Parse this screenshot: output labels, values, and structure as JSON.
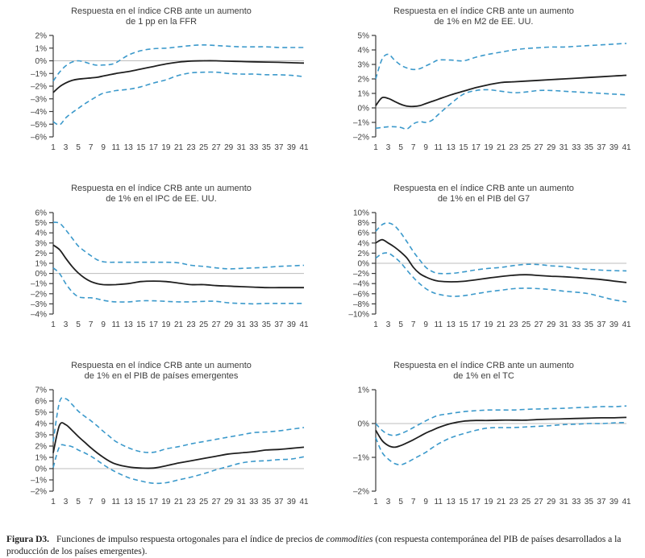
{
  "colors": {
    "band": "#3b99cb",
    "mean": "#1f1f1f",
    "zero_line": "#bcbcbc",
    "axis": "#3a3a3a",
    "text": "#3d3d3d"
  },
  "caption": {
    "label": "Figura D3.",
    "text_before_italic": "Funciones de impulso respuesta ortogonales para el índice de precios de ",
    "italic": "commodities",
    "text_after_italic": " (con respuesta contemporánea del PIB de países desarrollados a la producción de los países emergentes)."
  },
  "chart_data": [
    {
      "type": "line",
      "title_line1": "Respuesta en el índice CRB ante un aumento",
      "title_line2": "de 1 pp en la FFR",
      "ylim": [
        -6,
        2
      ],
      "ytick_step": 1,
      "xticks": [
        1,
        3,
        5,
        7,
        9,
        11,
        13,
        15,
        17,
        19,
        21,
        23,
        25,
        27,
        29,
        31,
        33,
        35,
        37,
        39,
        41
      ],
      "x": [
        1,
        2,
        3,
        4,
        5,
        6,
        7,
        8,
        9,
        10,
        11,
        13,
        15,
        17,
        19,
        21,
        23,
        25,
        27,
        29,
        31,
        33,
        35,
        37,
        39,
        41
      ],
      "series": [
        {
          "id": "mean",
          "style": "solid",
          "values": [
            -2.5,
            -2.05,
            -1.75,
            -1.55,
            -1.45,
            -1.4,
            -1.35,
            -1.3,
            -1.2,
            -1.1,
            -1.0,
            -0.85,
            -0.65,
            -0.45,
            -0.25,
            -0.1,
            -0.02,
            0,
            0,
            -0.03,
            -0.06,
            -0.08,
            -0.1,
            -0.12,
            -0.15,
            -0.18
          ]
        },
        {
          "id": "upper_band",
          "style": "dashed",
          "values": [
            -1.6,
            -0.9,
            -0.4,
            -0.1,
            0,
            -0.1,
            -0.25,
            -0.35,
            -0.33,
            -0.3,
            -0.15,
            0.45,
            0.8,
            0.95,
            1.0,
            1.1,
            1.2,
            1.25,
            1.2,
            1.15,
            1.1,
            1.1,
            1.1,
            1.05,
            1.05,
            1.05
          ]
        },
        {
          "id": "lower_band",
          "style": "dashed",
          "values": [
            -4.8,
            -5.05,
            -4.5,
            -4.1,
            -3.75,
            -3.4,
            -3.1,
            -2.8,
            -2.55,
            -2.45,
            -2.35,
            -2.25,
            -2.05,
            -1.75,
            -1.5,
            -1.15,
            -0.95,
            -0.9,
            -0.9,
            -1.0,
            -1.05,
            -1.05,
            -1.1,
            -1.1,
            -1.15,
            -1.25
          ]
        }
      ]
    },
    {
      "type": "line",
      "title_line1": "Respuesta en el índice CRB ante un aumento",
      "title_line2": "de 1% en M2 de EE. UU.",
      "ylim": [
        -2,
        5
      ],
      "ytick_step": 1,
      "xticks": [
        1,
        3,
        5,
        7,
        9,
        11,
        13,
        15,
        17,
        19,
        21,
        23,
        25,
        27,
        29,
        31,
        33,
        35,
        37,
        39,
        41
      ],
      "x": [
        1,
        2,
        3,
        4,
        5,
        6,
        7,
        8,
        9,
        10,
        11,
        13,
        15,
        17,
        19,
        21,
        23,
        25,
        27,
        29,
        31,
        33,
        35,
        37,
        39,
        41
      ],
      "series": [
        {
          "id": "mean",
          "style": "solid",
          "values": [
            0.15,
            0.7,
            0.65,
            0.45,
            0.25,
            0.12,
            0.1,
            0.15,
            0.3,
            0.45,
            0.6,
            0.9,
            1.15,
            1.4,
            1.6,
            1.75,
            1.8,
            1.85,
            1.9,
            1.95,
            2.0,
            2.05,
            2.1,
            2.15,
            2.2,
            2.25
          ]
        },
        {
          "id": "upper_band",
          "style": "dashed",
          "values": [
            2.0,
            3.35,
            3.7,
            3.3,
            2.95,
            2.75,
            2.65,
            2.7,
            2.9,
            3.1,
            3.3,
            3.3,
            3.25,
            3.5,
            3.7,
            3.85,
            4.0,
            4.1,
            4.15,
            4.2,
            4.2,
            4.25,
            4.3,
            4.35,
            4.4,
            4.45
          ]
        },
        {
          "id": "lower_band",
          "style": "dashed",
          "values": [
            -1.4,
            -1.35,
            -1.3,
            -1.3,
            -1.35,
            -1.45,
            -1.1,
            -0.95,
            -1.0,
            -0.85,
            -0.45,
            0.3,
            0.95,
            1.2,
            1.25,
            1.15,
            1.05,
            1.1,
            1.2,
            1.2,
            1.15,
            1.1,
            1.05,
            1.0,
            0.95,
            0.9
          ]
        }
      ]
    },
    {
      "type": "line",
      "title_line1": "Respuesta en el índice CRB ante un aumento",
      "title_line2": "de 1% en el IPC de EE. UU.",
      "ylim": [
        -4,
        6
      ],
      "ytick_step": 1,
      "xticks": [
        1,
        3,
        5,
        7,
        9,
        11,
        13,
        15,
        17,
        19,
        21,
        23,
        25,
        27,
        29,
        31,
        33,
        35,
        37,
        39,
        41
      ],
      "x": [
        1,
        2,
        3,
        4,
        5,
        6,
        7,
        8,
        9,
        10,
        11,
        13,
        15,
        17,
        19,
        21,
        23,
        25,
        27,
        29,
        31,
        33,
        35,
        37,
        39,
        41
      ],
      "series": [
        {
          "id": "mean",
          "style": "solid",
          "values": [
            2.8,
            2.35,
            1.5,
            0.7,
            0.05,
            -0.45,
            -0.8,
            -1.0,
            -1.1,
            -1.12,
            -1.1,
            -1.0,
            -0.8,
            -0.75,
            -0.8,
            -0.95,
            -1.1,
            -1.1,
            -1.2,
            -1.25,
            -1.3,
            -1.35,
            -1.4,
            -1.4,
            -1.4,
            -1.4
          ]
        },
        {
          "id": "upper_band",
          "style": "dashed",
          "values": [
            5.05,
            4.95,
            4.3,
            3.5,
            2.7,
            2.2,
            1.75,
            1.35,
            1.15,
            1.1,
            1.1,
            1.1,
            1.1,
            1.1,
            1.1,
            1.05,
            0.8,
            0.7,
            0.55,
            0.45,
            0.5,
            0.55,
            0.6,
            0.7,
            0.75,
            0.8
          ]
        },
        {
          "id": "lower_band",
          "style": "dashed",
          "values": [
            0.55,
            0,
            -1.0,
            -1.8,
            -2.3,
            -2.4,
            -2.4,
            -2.5,
            -2.65,
            -2.75,
            -2.8,
            -2.8,
            -2.7,
            -2.7,
            -2.75,
            -2.8,
            -2.8,
            -2.75,
            -2.75,
            -2.9,
            -2.95,
            -3.0,
            -2.95,
            -2.95,
            -2.95,
            -2.95
          ]
        }
      ]
    },
    {
      "type": "line",
      "title_line1": "Respuesta en el índice CRB ante un aumento",
      "title_line2": "de 1% en el PIB del G7",
      "ylim": [
        -10,
        10
      ],
      "ytick_step": 2,
      "xticks": [
        1,
        3,
        5,
        7,
        9,
        11,
        13,
        15,
        17,
        19,
        21,
        23,
        25,
        27,
        29,
        31,
        33,
        35,
        37,
        39,
        41
      ],
      "x": [
        1,
        2,
        3,
        4,
        5,
        6,
        7,
        8,
        9,
        10,
        11,
        13,
        15,
        17,
        19,
        21,
        23,
        25,
        27,
        29,
        31,
        33,
        35,
        37,
        39,
        41
      ],
      "series": [
        {
          "id": "mean",
          "style": "solid",
          "values": [
            4.0,
            4.65,
            4.0,
            3.2,
            2.2,
            1.0,
            -0.8,
            -2.0,
            -2.7,
            -3.2,
            -3.5,
            -3.65,
            -3.55,
            -3.25,
            -2.9,
            -2.6,
            -2.35,
            -2.25,
            -2.4,
            -2.55,
            -2.65,
            -2.8,
            -3.0,
            -3.2,
            -3.5,
            -3.8
          ]
        },
        {
          "id": "upper_band",
          "style": "dashed",
          "values": [
            6.3,
            7.6,
            7.95,
            7.4,
            6.0,
            4.2,
            2.3,
            0.7,
            -0.8,
            -1.6,
            -2.0,
            -2.0,
            -1.7,
            -1.3,
            -1.0,
            -0.8,
            -0.45,
            -0.2,
            -0.25,
            -0.5,
            -0.65,
            -1.0,
            -1.2,
            -1.35,
            -1.45,
            -1.5
          ]
        },
        {
          "id": "lower_band",
          "style": "dashed",
          "values": [
            1.0,
            1.9,
            2.0,
            1.2,
            0.1,
            -1.4,
            -2.8,
            -4.0,
            -5.0,
            -5.7,
            -6.1,
            -6.5,
            -6.4,
            -6.0,
            -5.6,
            -5.3,
            -5.0,
            -4.9,
            -5.0,
            -5.2,
            -5.5,
            -5.7,
            -6.0,
            -6.6,
            -7.2,
            -7.6
          ]
        }
      ]
    },
    {
      "type": "line",
      "title_line1": "Respuesta en el índice CRB ante un aumento",
      "title_line2": "de 1% en el PIB de países emergentes",
      "ylim": [
        -2,
        7
      ],
      "ytick_step": 1,
      "xticks": [
        1,
        3,
        5,
        7,
        9,
        11,
        13,
        15,
        17,
        19,
        21,
        23,
        25,
        27,
        29,
        31,
        33,
        35,
        37,
        39,
        41
      ],
      "x": [
        1,
        2,
        3,
        4,
        5,
        6,
        7,
        8,
        9,
        10,
        11,
        13,
        15,
        17,
        19,
        21,
        23,
        25,
        27,
        29,
        31,
        33,
        35,
        37,
        39,
        41
      ],
      "series": [
        {
          "id": "mean",
          "style": "solid",
          "values": [
            1.4,
            3.85,
            3.9,
            3.4,
            2.85,
            2.35,
            1.85,
            1.4,
            1.0,
            0.65,
            0.4,
            0.15,
            0.05,
            0.05,
            0.25,
            0.5,
            0.7,
            0.9,
            1.1,
            1.3,
            1.4,
            1.5,
            1.65,
            1.7,
            1.8,
            1.9
          ]
        },
        {
          "id": "upper_band",
          "style": "dashed",
          "values": [
            2.4,
            5.9,
            6.2,
            5.7,
            5.1,
            4.65,
            4.25,
            3.8,
            3.3,
            2.85,
            2.4,
            1.85,
            1.5,
            1.45,
            1.75,
            1.95,
            2.2,
            2.4,
            2.6,
            2.8,
            3.0,
            3.2,
            3.25,
            3.35,
            3.5,
            3.65
          ]
        },
        {
          "id": "lower_band",
          "style": "dashed",
          "values": [
            0.1,
            1.95,
            2.05,
            1.95,
            1.65,
            1.4,
            1.1,
            0.75,
            0.35,
            0,
            -0.3,
            -0.8,
            -1.1,
            -1.3,
            -1.25,
            -1.0,
            -0.75,
            -0.45,
            -0.1,
            0.2,
            0.5,
            0.65,
            0.7,
            0.8,
            0.85,
            1.05
          ]
        }
      ]
    },
    {
      "type": "line",
      "title_line1": "Respuesta en el índice CRB ante un aumento",
      "title_line2": "de 1% en el TC",
      "ylim": [
        -2,
        1
      ],
      "ytick_step": 1,
      "xticks": [
        1,
        3,
        5,
        7,
        9,
        11,
        13,
        15,
        17,
        19,
        21,
        23,
        25,
        27,
        29,
        31,
        33,
        35,
        37,
        39,
        41
      ],
      "x": [
        1,
        2,
        3,
        4,
        5,
        6,
        7,
        8,
        9,
        10,
        11,
        13,
        15,
        17,
        19,
        21,
        23,
        25,
        27,
        29,
        31,
        33,
        35,
        37,
        39,
        41
      ],
      "series": [
        {
          "id": "mean",
          "style": "solid",
          "values": [
            -0.2,
            -0.5,
            -0.65,
            -0.7,
            -0.65,
            -0.57,
            -0.48,
            -0.38,
            -0.28,
            -0.2,
            -0.12,
            0,
            0.07,
            0.09,
            0.09,
            0.1,
            0.1,
            0.1,
            0.12,
            0.13,
            0.14,
            0.15,
            0.16,
            0.17,
            0.17,
            0.18
          ]
        },
        {
          "id": "upper_band",
          "style": "dashed",
          "values": [
            0,
            -0.2,
            -0.32,
            -0.35,
            -0.3,
            -0.22,
            -0.12,
            -0.02,
            0.08,
            0.17,
            0.24,
            0.3,
            0.35,
            0.38,
            0.4,
            0.4,
            0.4,
            0.42,
            0.43,
            0.44,
            0.45,
            0.47,
            0.48,
            0.5,
            0.5,
            0.52
          ]
        },
        {
          "id": "lower_band",
          "style": "dashed",
          "values": [
            -0.42,
            -0.85,
            -1.05,
            -1.18,
            -1.22,
            -1.15,
            -1.05,
            -0.95,
            -0.85,
            -0.72,
            -0.6,
            -0.42,
            -0.3,
            -0.2,
            -0.13,
            -0.12,
            -0.12,
            -0.1,
            -0.08,
            -0.06,
            -0.03,
            -0.02,
            0,
            0,
            0.02,
            0.03
          ]
        }
      ]
    }
  ]
}
